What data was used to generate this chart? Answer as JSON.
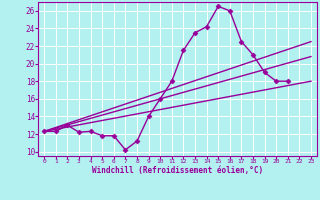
{
  "xlabel": "Windchill (Refroidissement éolien,°C)",
  "xlim": [
    -0.5,
    23.5
  ],
  "ylim": [
    9.5,
    27.0
  ],
  "yticks": [
    10,
    12,
    14,
    16,
    18,
    20,
    22,
    24,
    26
  ],
  "xticks": [
    0,
    1,
    2,
    3,
    4,
    5,
    6,
    7,
    8,
    9,
    10,
    11,
    12,
    13,
    14,
    15,
    16,
    17,
    18,
    19,
    20,
    21,
    22,
    23
  ],
  "bg_color": "#b3f0f0",
  "grid_color": "#ffffff",
  "line_color": "#990099",
  "series": [
    {
      "x": [
        0,
        1,
        2,
        3,
        4,
        5,
        6,
        7,
        8,
        9,
        10,
        11,
        12,
        13,
        14,
        15,
        16,
        17,
        18,
        19,
        20,
        21
      ],
      "y": [
        12.3,
        12.3,
        13.0,
        12.2,
        12.3,
        11.8,
        11.8,
        10.2,
        11.2,
        14.0,
        16.0,
        18.0,
        21.5,
        23.5,
        24.2,
        26.5,
        26.0,
        22.5,
        21.0,
        19.0,
        18.0,
        18.0
      ],
      "marker": "D",
      "markersize": 2.5,
      "linewidth": 1.0
    },
    {
      "x": [
        0,
        23
      ],
      "y": [
        12.3,
        22.5
      ],
      "marker": null,
      "linewidth": 1.0
    },
    {
      "x": [
        0,
        23
      ],
      "y": [
        12.3,
        20.8
      ],
      "marker": null,
      "linewidth": 1.0
    },
    {
      "x": [
        0,
        23
      ],
      "y": [
        12.3,
        18.0
      ],
      "marker": null,
      "linewidth": 1.0
    }
  ]
}
